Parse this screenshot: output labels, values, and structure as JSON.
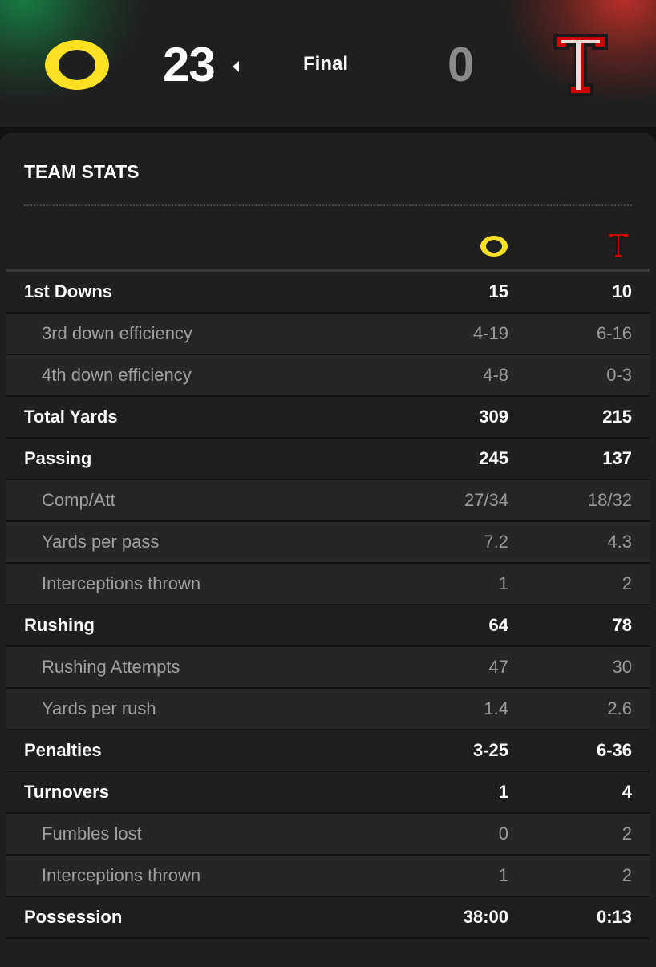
{
  "scoreboard": {
    "away_score": "23",
    "status": "Final",
    "home_score": "0",
    "away_logo_icon": "oregon-o-logo-icon",
    "home_logo_icon": "texas-tech-double-t-logo-icon",
    "winner_indicator_icon": "winner-arrow-left-icon",
    "colors": {
      "away_accent": "#FEE123",
      "home_accent": "#CC0000",
      "away_glow": "#148C46",
      "home_glow": "#D23228"
    }
  },
  "team_stats": {
    "title": "TEAM STATS",
    "rows": [
      {
        "label": "1st Downs",
        "away": "15",
        "home": "10",
        "kind": "main"
      },
      {
        "label": "3rd down efficiency",
        "away": "4-19",
        "home": "6-16",
        "kind": "sub"
      },
      {
        "label": "4th down efficiency",
        "away": "4-8",
        "home": "0-3",
        "kind": "sub"
      },
      {
        "label": "Total Yards",
        "away": "309",
        "home": "215",
        "kind": "main"
      },
      {
        "label": "Passing",
        "away": "245",
        "home": "137",
        "kind": "main"
      },
      {
        "label": "Comp/Att",
        "away": "27/34",
        "home": "18/32",
        "kind": "sub"
      },
      {
        "label": "Yards per pass",
        "away": "7.2",
        "home": "4.3",
        "kind": "sub"
      },
      {
        "label": "Interceptions thrown",
        "away": "1",
        "home": "2",
        "kind": "sub"
      },
      {
        "label": "Rushing",
        "away": "64",
        "home": "78",
        "kind": "main"
      },
      {
        "label": "Rushing Attempts",
        "away": "47",
        "home": "30",
        "kind": "sub"
      },
      {
        "label": "Yards per rush",
        "away": "1.4",
        "home": "2.6",
        "kind": "sub"
      },
      {
        "label": "Penalties",
        "away": "3-25",
        "home": "6-36",
        "kind": "main"
      },
      {
        "label": "Turnovers",
        "away": "1",
        "home": "4",
        "kind": "main"
      },
      {
        "label": "Fumbles lost",
        "away": "0",
        "home": "2",
        "kind": "sub"
      },
      {
        "label": "Interceptions thrown",
        "away": "1",
        "home": "2",
        "kind": "sub"
      },
      {
        "label": "Possession",
        "away": "38:00",
        "home": "0:13",
        "kind": "main"
      }
    ]
  }
}
